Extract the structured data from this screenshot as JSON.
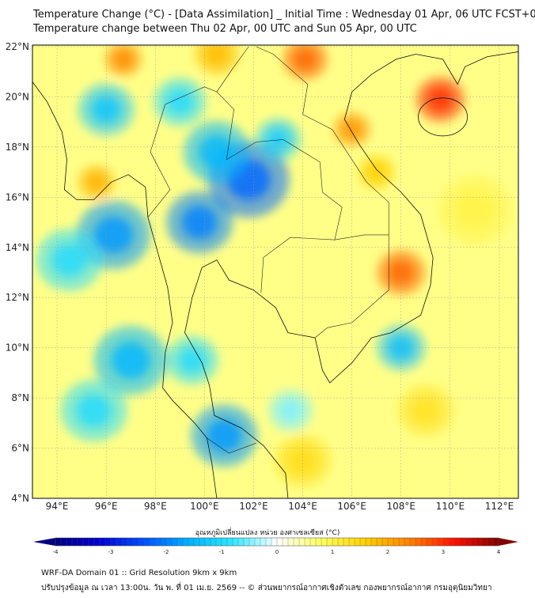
{
  "header": {
    "title_line1": "Temperature Change (°C) - [Data Assimilation] _ Initial Time : Wednesday 01 Apr, 06 UTC FCST+072",
    "title_line2": "Temperature change between Thu 02 Apr, 00 UTC and Sun 05 Apr, 00 UTC"
  },
  "map": {
    "lon_range": [
      93,
      112.75
    ],
    "lat_range": [
      4,
      22
    ],
    "lon_ticks": [
      "94°E",
      "96°E",
      "98°E",
      "100°E",
      "102°E",
      "104°E",
      "106°E",
      "108°E",
      "110°E",
      "112°E"
    ],
    "lat_ticks": [
      "22°N",
      "20°N",
      "18°N",
      "16°N",
      "14°N",
      "12°N",
      "10°N",
      "8°N",
      "6°N",
      "4°N"
    ],
    "background_value": 0.6,
    "anomaly_centers": [
      {
        "lon": 101.8,
        "lat": 16.7,
        "value": -2.2,
        "r": 2.2
      },
      {
        "lon": 99.8,
        "lat": 15.0,
        "value": -2.0,
        "r": 1.8
      },
      {
        "lon": 100.5,
        "lat": 17.8,
        "value": -1.5,
        "r": 1.8
      },
      {
        "lon": 103.0,
        "lat": 18.3,
        "value": -1.2,
        "r": 1.2
      },
      {
        "lon": 96.3,
        "lat": 14.5,
        "value": -1.8,
        "r": 2.0
      },
      {
        "lon": 94.5,
        "lat": 13.5,
        "value": -1.0,
        "r": 1.8
      },
      {
        "lon": 97.0,
        "lat": 9.5,
        "value": -1.5,
        "r": 2.0
      },
      {
        "lon": 95.5,
        "lat": 7.5,
        "value": -1.0,
        "r": 1.8
      },
      {
        "lon": 100.8,
        "lat": 6.5,
        "value": -1.8,
        "r": 1.8
      },
      {
        "lon": 99.5,
        "lat": 9.5,
        "value": -1.0,
        "r": 1.4
      },
      {
        "lon": 96.0,
        "lat": 19.5,
        "value": -1.3,
        "r": 1.5
      },
      {
        "lon": 99.0,
        "lat": 19.8,
        "value": -1.0,
        "r": 1.4
      },
      {
        "lon": 108.0,
        "lat": 10.0,
        "value": -1.4,
        "r": 1.3
      },
      {
        "lon": 103.5,
        "lat": 7.5,
        "value": -0.5,
        "r": 1.2
      },
      {
        "lon": 109.6,
        "lat": 19.9,
        "value": 3.0,
        "r": 1.3
      },
      {
        "lon": 108.0,
        "lat": 13.0,
        "value": 2.6,
        "r": 1.3
      },
      {
        "lon": 104.1,
        "lat": 21.5,
        "value": 2.6,
        "r": 1.2
      },
      {
        "lon": 96.7,
        "lat": 21.5,
        "value": 2.3,
        "r": 1.0
      },
      {
        "lon": 95.6,
        "lat": 16.6,
        "value": 1.9,
        "r": 1.0
      },
      {
        "lon": 106.0,
        "lat": 18.7,
        "value": 2.2,
        "r": 1.0
      },
      {
        "lon": 107.0,
        "lat": 17.0,
        "value": 1.6,
        "r": 1.0
      },
      {
        "lon": 100.5,
        "lat": 21.7,
        "value": 1.8,
        "r": 1.2
      },
      {
        "lon": 111.0,
        "lat": 15.5,
        "value": 1.0,
        "r": 2.0
      },
      {
        "lon": 104.0,
        "lat": 5.5,
        "value": 1.4,
        "r": 1.5
      },
      {
        "lon": 109.0,
        "lat": 7.5,
        "value": 1.3,
        "r": 1.5
      }
    ]
  },
  "colorbar": {
    "label": "อุณหภูมิเปลี่ยนแปลง หน่วย องศาเซลเซียส (°C)",
    "min": -4,
    "max": 4,
    "ticks": [
      "-4",
      "-3",
      "-2",
      "-1",
      "0",
      "1",
      "2",
      "3",
      "4"
    ],
    "colors": [
      "#000080",
      "#0000d0",
      "#0050ff",
      "#00b0ff",
      "#30e8ff",
      "#ffffff",
      "#ffff60",
      "#ffd000",
      "#ff8000",
      "#ff1000",
      "#800000"
    ]
  },
  "footer": {
    "line1": "WRF-DA Domain 01 :: Grid Resolution 9km x 9km",
    "line2": "ปรับปรุงข้อมูล ณ เวลา 13:00น. วัน พ. ที่ 01 เม.ย. 2569 -- © ส่วนพยากรณ์อากาศเชิงตัวเลข กองพยากรณ์อากาศ กรมอุตุนิยมวิทยา"
  }
}
